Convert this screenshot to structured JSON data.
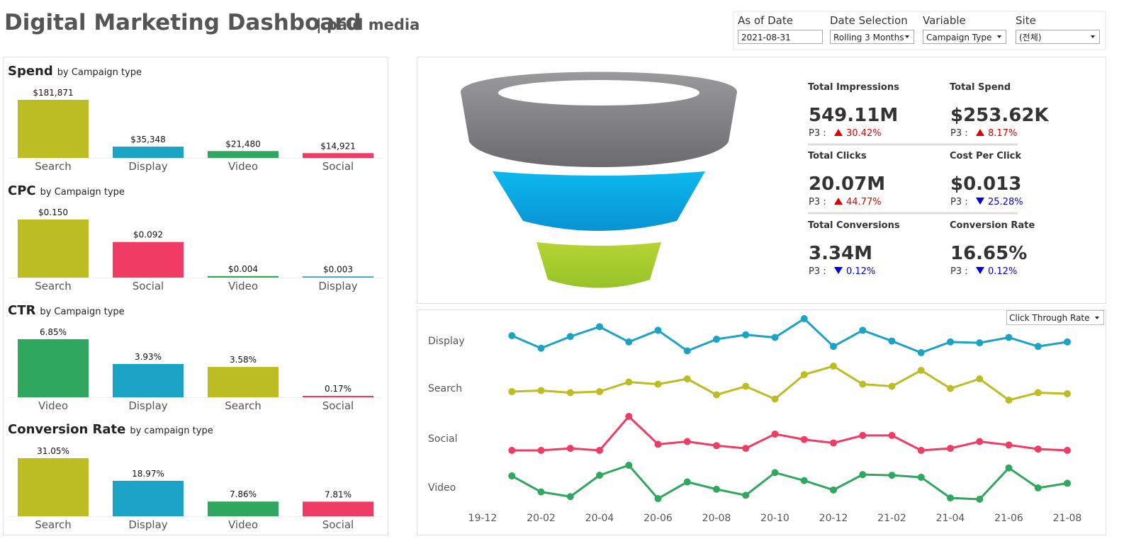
{
  "header": {
    "title": "Digital Marketing Dashboard",
    "subtitle": "| paid media"
  },
  "controls": [
    {
      "label": "As of Date",
      "value": "2021-08-31"
    },
    {
      "label": "Date Selection",
      "value": "Rolling 3 Months"
    },
    {
      "label": "Variable",
      "value": "Campaign Type"
    },
    {
      "label": "Site",
      "value": "(전체)"
    }
  ],
  "kpis": [
    {
      "label": "Total Impressions",
      "value": "549.11M",
      "period": "P3 :",
      "change": "30.42%",
      "trend": "up"
    },
    {
      "label": "Total Spend",
      "value": "$253.62K",
      "period": "P3 :",
      "change": "8.17%",
      "trend": "up"
    },
    {
      "label": "Total Clicks",
      "value": "20.07M",
      "period": "P3 :",
      "change": "44.77%",
      "trend": "up"
    },
    {
      "label": "Cost Per Click",
      "value": "$0.013",
      "period": "P3 :",
      "change": "25.28%",
      "trend": "down"
    },
    {
      "label": "Total Conversions",
      "value": "3.34M",
      "period": "P3 :",
      "change": "0.12%",
      "trend": "down"
    },
    {
      "label": "Conversion Rate",
      "value": "16.65%",
      "period": "P3 :",
      "change": "0.12%",
      "trend": "down"
    }
  ],
  "chart_data": [
    {
      "type": "bar",
      "title": "Spend",
      "subtitle": "by Campaign type",
      "categories": [
        "Search",
        "Display",
        "Video",
        "Social"
      ],
      "values": [
        181871,
        35348,
        21480,
        14921
      ],
      "value_labels": [
        "$181,871",
        "$35,348",
        "$21,480",
        "$14,921"
      ],
      "colors": [
        "#bcbd22",
        "#1ba3c6",
        "#30a75e",
        "#f03b65"
      ]
    },
    {
      "type": "bar",
      "title": "CPC",
      "subtitle": "by Campaign type",
      "categories": [
        "Search",
        "Social",
        "Video",
        "Display"
      ],
      "values": [
        0.15,
        0.092,
        0.004,
        0.003
      ],
      "value_labels": [
        "$0.150",
        "$0.092",
        "$0.004",
        "$0.003"
      ],
      "colors": [
        "#bcbd22",
        "#f03b65",
        "#30a75e",
        "#1ba3c6"
      ]
    },
    {
      "type": "bar",
      "title": "CTR",
      "subtitle": "by Campaign type",
      "categories": [
        "Video",
        "Display",
        "Search",
        "Social"
      ],
      "values": [
        6.85,
        3.93,
        3.58,
        0.17
      ],
      "value_labels": [
        "6.85%",
        "3.93%",
        "3.58%",
        "0.17%"
      ],
      "colors": [
        "#30a75e",
        "#1ba3c6",
        "#bcbd22",
        "#f03b65"
      ]
    },
    {
      "type": "bar",
      "title": "Conversion Rate",
      "subtitle": "by campaign type",
      "categories": [
        "Search",
        "Display",
        "Video",
        "Social"
      ],
      "values": [
        31.05,
        18.97,
        7.86,
        7.81
      ],
      "value_labels": [
        "31.05%",
        "18.97%",
        "7.86%",
        "7.81%"
      ],
      "colors": [
        "#bcbd22",
        "#1ba3c6",
        "#30a75e",
        "#f03b65"
      ]
    },
    {
      "type": "line",
      "selector": "Click Through Rate",
      "x": [
        "19-12",
        null,
        "20-02",
        null,
        "20-04",
        null,
        "20-06",
        null,
        "20-08",
        null,
        "20-10",
        null,
        "20-12",
        null,
        "21-02",
        null,
        "21-04",
        null,
        "21-06",
        null,
        "21-08"
      ],
      "series": [
        {
          "name": "Display",
          "color": "#1ba3c6",
          "values": [
            null,
            4.06,
            3.92,
            4.05,
            4.16,
            3.99,
            4.12,
            3.89,
            4.02,
            4.07,
            4.04,
            4.25,
            3.94,
            4.12,
            4.0,
            3.87,
            3.99,
            3.98,
            4.04,
            3.94,
            3.99
          ]
        },
        {
          "name": "Search",
          "color": "#bcbd22",
          "values": [
            null,
            3.59,
            3.6,
            3.58,
            3.59,
            3.68,
            3.66,
            3.71,
            3.56,
            3.64,
            3.52,
            3.75,
            3.83,
            3.66,
            3.64,
            3.79,
            3.62,
            3.71,
            3.51,
            3.58,
            3.57
          ]
        },
        {
          "name": "Social",
          "color": "#f03b65",
          "values": [
            null,
            0.15,
            0.15,
            0.156,
            0.15,
            0.25,
            0.168,
            0.176,
            0.164,
            0.156,
            0.198,
            0.182,
            0.172,
            0.194,
            0.194,
            0.15,
            0.156,
            0.176,
            0.166,
            0.154,
            0.15
          ]
        },
        {
          "name": "Video",
          "color": "#30a75e",
          "values": [
            null,
            7.06,
            6.58,
            6.44,
            7.08,
            7.38,
            6.38,
            6.88,
            6.66,
            6.48,
            7.16,
            6.92,
            6.64,
            7.1,
            7.08,
            7.02,
            6.4,
            6.36,
            7.3,
            6.7,
            6.84
          ]
        }
      ]
    }
  ]
}
